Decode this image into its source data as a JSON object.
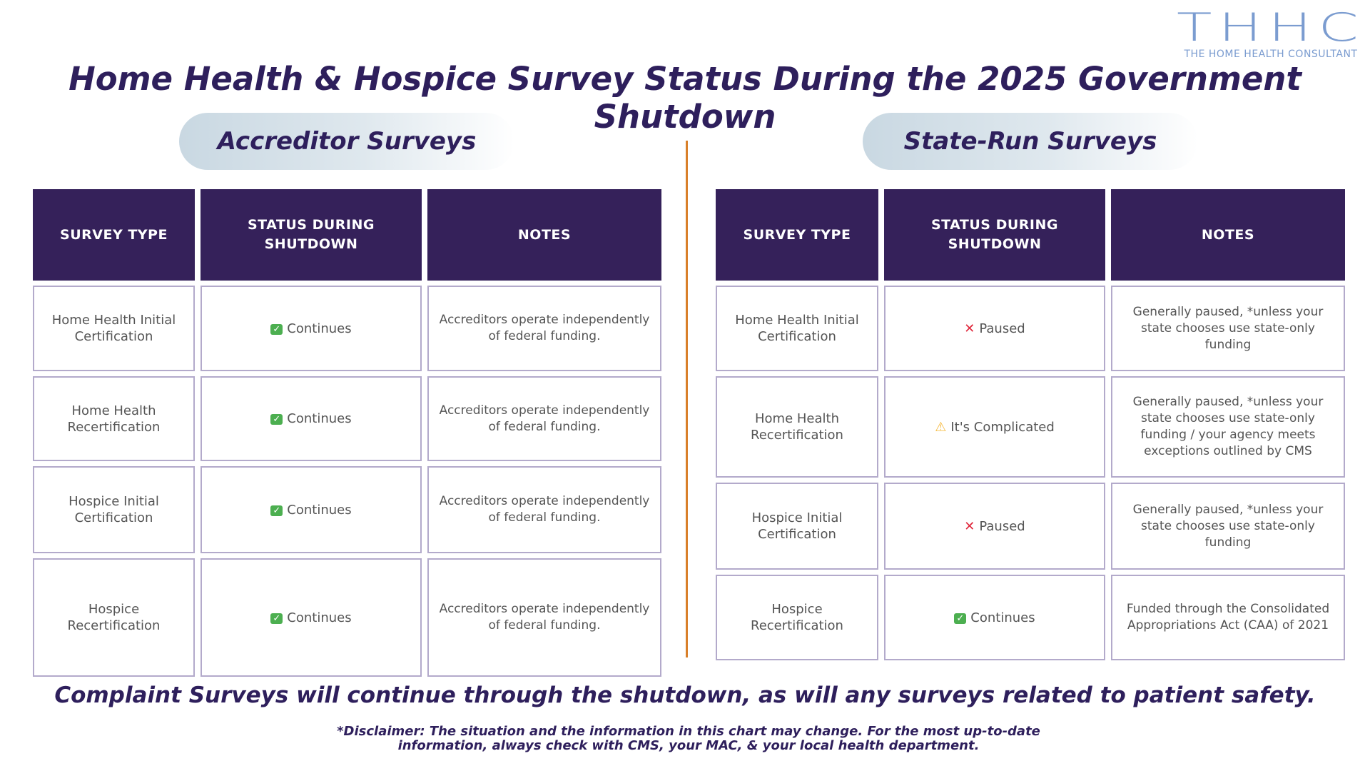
{
  "logo": {
    "mark": "THHC",
    "tagline": "THE HOME HEALTH CONSULTANT"
  },
  "title": "Home Health & Hospice Survey Status During the 2025 Government Shutdown",
  "colors": {
    "header": "#35215a",
    "title": "#2e1f5c",
    "divider": "#d9802a",
    "border": "#b3aacb"
  },
  "accreditor": {
    "heading": "Accreditor Surveys",
    "columns": [
      "SURVEY TYPE",
      "STATUS DURING SHUTDOWN",
      "NOTES"
    ],
    "rows": [
      {
        "type": "Home Health Initial Certification",
        "icon": "check-icon",
        "status": "Continues",
        "notes": "Accreditors operate independently of federal funding."
      },
      {
        "type": "Home Health Recertification",
        "icon": "check-icon",
        "status": "Continues",
        "notes": "Accreditors operate independently of federal funding."
      },
      {
        "type": "Hospice Initial Certification",
        "icon": "check-icon",
        "status": "Continues",
        "notes": "Accreditors operate independently of federal funding."
      },
      {
        "type": "Hospice Recertification",
        "icon": "check-icon",
        "status": "Continues",
        "notes": "Accreditors operate independently of federal funding."
      }
    ]
  },
  "state": {
    "heading": "State-Run Surveys",
    "columns": [
      "SURVEY TYPE",
      "STATUS DURING SHUTDOWN",
      "NOTES"
    ],
    "rows": [
      {
        "type": "Home Health Initial Certification",
        "icon": "x-icon",
        "status": "Paused",
        "notes": "Generally paused, *unless your state chooses use state-only funding"
      },
      {
        "type": "Home Health Recertification",
        "icon": "warning-icon",
        "status": "It's Complicated",
        "notes": "Generally paused, *unless your state chooses use state-only funding / your agency meets exceptions outlined by CMS"
      },
      {
        "type": "Hospice Initial Certification",
        "icon": "x-icon",
        "status": "Paused",
        "notes": "Generally paused, *unless your state chooses use state-only funding"
      },
      {
        "type": "Hospice Recertification",
        "icon": "check-icon",
        "status": "Continues",
        "notes": "Funded through the Consolidated Appropriations Act (CAA) of 2021"
      }
    ]
  },
  "footer": "Complaint Surveys will continue through the shutdown, as will any surveys related to patient safety.",
  "disclaimer": [
    "*Disclaimer: The situation and the information in this chart may change. For the most up-to-date",
    "information, always check with CMS, your MAC, & your local health department."
  ]
}
